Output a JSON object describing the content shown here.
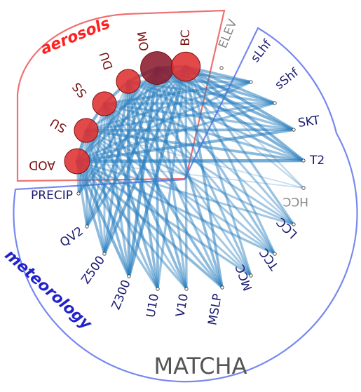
{
  "title": "MATCHA",
  "groups": {
    "aerosols": {
      "label": "aerosols",
      "color": "#ff2020",
      "border": "#f07070"
    },
    "meteorology": {
      "label": "meteorology",
      "color": "#2222cc",
      "border": "#7788ee"
    }
  },
  "colors": {
    "edge": "#2a7fc0",
    "aero_node": "#e03030",
    "aero_node_dark": "#8b1a2e",
    "aero_text": "#7a1010",
    "met_text": "#1a1a6e",
    "faint_text": "#888888"
  },
  "nodes": [
    {
      "id": "AOD",
      "label": "AOD",
      "group": "aerosols",
      "size": 1.0
    },
    {
      "id": "SU",
      "label": "SU",
      "group": "aerosols",
      "size": 0.95
    },
    {
      "id": "SS",
      "label": "SS",
      "group": "aerosols",
      "size": 0.95
    },
    {
      "id": "DU",
      "label": "DU",
      "group": "aerosols",
      "size": 0.95
    },
    {
      "id": "OM",
      "label": "OM",
      "group": "aerosols",
      "size": 1.3,
      "dark": true
    },
    {
      "id": "BC",
      "label": "BC",
      "group": "aerosols",
      "size": 1.15
    },
    {
      "id": "ELEV",
      "label": "ELEV",
      "group": "meteorology",
      "faint": true
    },
    {
      "id": "sLhf",
      "label": "sLhf",
      "group": "meteorology"
    },
    {
      "id": "sShf",
      "label": "sShf",
      "group": "meteorology"
    },
    {
      "id": "SKT",
      "label": "SKT",
      "group": "meteorology"
    },
    {
      "id": "T2",
      "label": "T2",
      "group": "meteorology"
    },
    {
      "id": "HCC",
      "label": "HCC",
      "group": "meteorology",
      "faint": true
    },
    {
      "id": "LCC",
      "label": "LCC",
      "group": "meteorology"
    },
    {
      "id": "TCC",
      "label": "TCC",
      "group": "meteorology"
    },
    {
      "id": "MCC",
      "label": "MCC",
      "group": "meteorology"
    },
    {
      "id": "MSLP",
      "label": "MSLP",
      "group": "meteorology"
    },
    {
      "id": "V10",
      "label": "V10",
      "group": "meteorology"
    },
    {
      "id": "U10",
      "label": "U10",
      "group": "meteorology"
    },
    {
      "id": "Z300",
      "label": "Z300",
      "group": "meteorology"
    },
    {
      "id": "Z500",
      "label": "Z500",
      "group": "meteorology"
    },
    {
      "id": "QV2",
      "label": "QV2",
      "group": "meteorology"
    },
    {
      "id": "PRECIP",
      "label": "PRECIP",
      "group": "meteorology"
    }
  ],
  "edges": [
    [
      "AOD",
      "T2",
      0.9
    ],
    [
      "AOD",
      "SKT",
      0.8
    ],
    [
      "AOD",
      "sShf",
      0.6
    ],
    [
      "AOD",
      "sLhf",
      0.6
    ],
    [
      "AOD",
      "LCC",
      0.5
    ],
    [
      "AOD",
      "TCC",
      0.6
    ],
    [
      "AOD",
      "MCC",
      0.6
    ],
    [
      "AOD",
      "MSLP",
      0.7
    ],
    [
      "AOD",
      "V10",
      0.6
    ],
    [
      "AOD",
      "U10",
      0.6
    ],
    [
      "AOD",
      "Z300",
      0.8
    ],
    [
      "AOD",
      "Z500",
      0.7
    ],
    [
      "AOD",
      "QV2",
      0.6
    ],
    [
      "AOD",
      "PRECIP",
      0.5
    ],
    [
      "AOD",
      "HCC",
      0.2
    ],
    [
      "SU",
      "T2",
      0.7
    ],
    [
      "SU",
      "SKT",
      0.7
    ],
    [
      "SU",
      "sShf",
      0.6
    ],
    [
      "SU",
      "sLhf",
      0.5
    ],
    [
      "SU",
      "LCC",
      0.5
    ],
    [
      "SU",
      "TCC",
      0.5
    ],
    [
      "SU",
      "MCC",
      0.5
    ],
    [
      "SU",
      "MSLP",
      0.6
    ],
    [
      "SU",
      "V10",
      0.5
    ],
    [
      "SU",
      "U10",
      0.6
    ],
    [
      "SU",
      "Z300",
      0.7
    ],
    [
      "SU",
      "Z500",
      0.6
    ],
    [
      "SU",
      "QV2",
      0.6
    ],
    [
      "SU",
      "PRECIP",
      0.4
    ],
    [
      "SU",
      "HCC",
      0.2
    ],
    [
      "SS",
      "T2",
      0.6
    ],
    [
      "SS",
      "SKT",
      0.6
    ],
    [
      "SS",
      "sShf",
      0.6
    ],
    [
      "SS",
      "sLhf",
      0.7
    ],
    [
      "SS",
      "LCC",
      0.5
    ],
    [
      "SS",
      "TCC",
      0.5
    ],
    [
      "SS",
      "MCC",
      0.5
    ],
    [
      "SS",
      "MSLP",
      0.7
    ],
    [
      "SS",
      "V10",
      0.7
    ],
    [
      "SS",
      "U10",
      0.7
    ],
    [
      "SS",
      "Z300",
      0.6
    ],
    [
      "SS",
      "Z500",
      0.5
    ],
    [
      "SS",
      "QV2",
      0.5
    ],
    [
      "SS",
      "PRECIP",
      0.4
    ],
    [
      "DU",
      "T2",
      0.6
    ],
    [
      "DU",
      "SKT",
      0.6
    ],
    [
      "DU",
      "sShf",
      0.6
    ],
    [
      "DU",
      "sLhf",
      0.5
    ],
    [
      "DU",
      "LCC",
      0.4
    ],
    [
      "DU",
      "TCC",
      0.5
    ],
    [
      "DU",
      "MCC",
      0.5
    ],
    [
      "DU",
      "MSLP",
      0.6
    ],
    [
      "DU",
      "V10",
      0.7
    ],
    [
      "DU",
      "U10",
      0.7
    ],
    [
      "DU",
      "Z300",
      0.8
    ],
    [
      "DU",
      "Z500",
      0.7
    ],
    [
      "DU",
      "QV2",
      0.5
    ],
    [
      "DU",
      "PRECIP",
      0.4
    ],
    [
      "OM",
      "T2",
      0.8
    ],
    [
      "OM",
      "SKT",
      0.8
    ],
    [
      "OM",
      "sShf",
      0.7
    ],
    [
      "OM",
      "sLhf",
      0.7
    ],
    [
      "OM",
      "LCC",
      0.5
    ],
    [
      "OM",
      "TCC",
      0.6
    ],
    [
      "OM",
      "MCC",
      0.6
    ],
    [
      "OM",
      "MSLP",
      0.7
    ],
    [
      "OM",
      "V10",
      0.6
    ],
    [
      "OM",
      "U10",
      0.7
    ],
    [
      "OM",
      "Z300",
      0.9
    ],
    [
      "OM",
      "Z500",
      0.8
    ],
    [
      "OM",
      "QV2",
      0.7
    ],
    [
      "OM",
      "PRECIP",
      0.6
    ],
    [
      "OM",
      "HCC",
      0.3
    ],
    [
      "BC",
      "T2",
      0.8
    ],
    [
      "BC",
      "SKT",
      0.8
    ],
    [
      "BC",
      "sShf",
      0.7
    ],
    [
      "BC",
      "sLhf",
      0.7
    ],
    [
      "BC",
      "LCC",
      0.6
    ],
    [
      "BC",
      "TCC",
      0.6
    ],
    [
      "BC",
      "MCC",
      0.6
    ],
    [
      "BC",
      "MSLP",
      0.7
    ],
    [
      "BC",
      "V10",
      0.6
    ],
    [
      "BC",
      "U10",
      0.6
    ],
    [
      "BC",
      "Z300",
      0.9
    ],
    [
      "BC",
      "Z500",
      0.8
    ],
    [
      "BC",
      "QV2",
      0.7
    ],
    [
      "BC",
      "PRECIP",
      0.6
    ],
    [
      "BC",
      "HCC",
      0.3
    ],
    [
      "AOD",
      "SU",
      0.9
    ],
    [
      "SU",
      "SS",
      0.8
    ],
    [
      "SS",
      "DU",
      0.8
    ],
    [
      "DU",
      "OM",
      0.9
    ],
    [
      "OM",
      "BC",
      0.9
    ],
    [
      "AOD",
      "OM",
      0.7
    ],
    [
      "SU",
      "BC",
      0.6
    ],
    [
      "AOD",
      "BC",
      0.6
    ]
  ]
}
